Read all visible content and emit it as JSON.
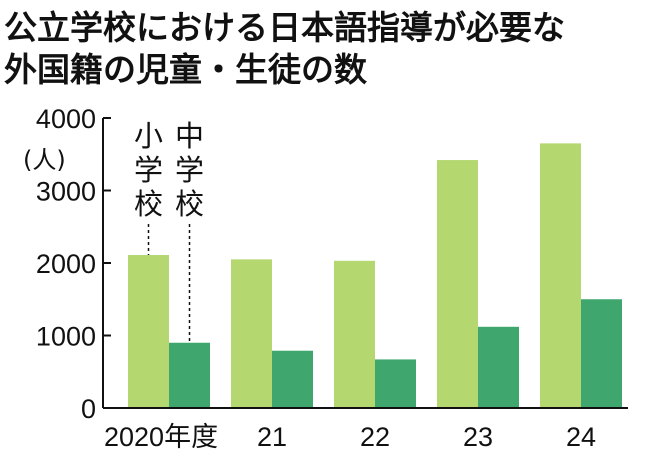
{
  "title_line1": "公立学校における日本語指導が必要な",
  "title_line2": "外国籍の児童・生徒の数",
  "chart_data": {
    "type": "bar",
    "title": "公立学校における日本語指導が必要な外国籍の児童・生徒の数",
    "unit": "(人)",
    "categories": [
      "2020年度",
      "21",
      "22",
      "23",
      "24"
    ],
    "series": [
      {
        "name": "小学校",
        "color": "#b5d770",
        "values": [
          2110,
          2050,
          2030,
          3420,
          3650
        ]
      },
      {
        "name": "中学校",
        "color": "#3fa66e",
        "values": [
          900,
          790,
          670,
          1120,
          1500
        ]
      }
    ],
    "y_ticks": [
      "0",
      "1000",
      "2000",
      "3000",
      "4000"
    ],
    "ylim": [
      0,
      4000
    ],
    "grid": false,
    "legend": "labels-on-first-group"
  }
}
